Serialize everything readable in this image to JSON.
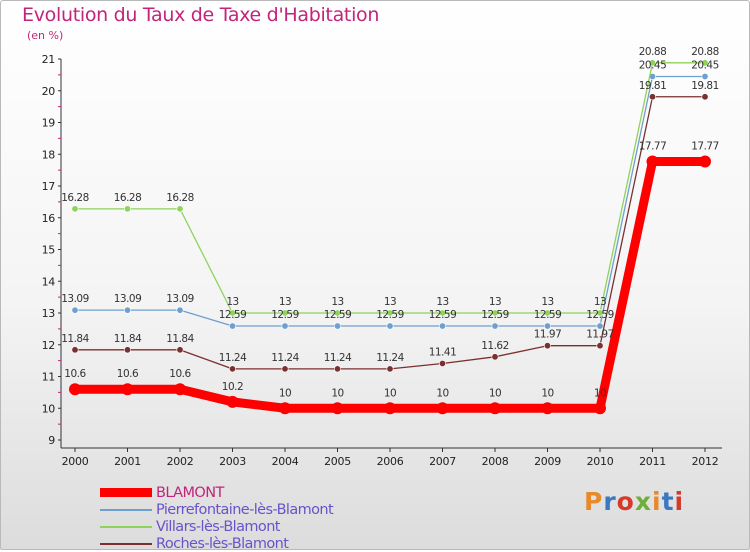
{
  "title": "Evolution du Taux de Taxe d'Habitation",
  "subtitle": "(en %)",
  "logo": {
    "text": "Proxiti",
    "colors": [
      "#e8892a",
      "#3b78c2",
      "#d33a2a",
      "#6fae3a",
      "#e8892a",
      "#3b78c2",
      "#d33a2a"
    ]
  },
  "chart_data": {
    "type": "line",
    "title": "Evolution du Taux de Taxe d'Habitation",
    "ylabel": "(en %)",
    "xlabel": "",
    "x": [
      "2000",
      "2001",
      "2002",
      "2003",
      "2004",
      "2005",
      "2006",
      "2007",
      "2008",
      "2009",
      "2010",
      "2011",
      "2012"
    ],
    "ylim": [
      9,
      21
    ],
    "yticks": [
      9,
      10,
      11,
      12,
      13,
      14,
      15,
      16,
      17,
      18,
      19,
      20,
      21
    ],
    "grid": false,
    "legend_position": "bottom-left",
    "series": [
      {
        "name": "BLAMONT",
        "color": "#ff0000",
        "emphasis": true,
        "values": [
          10.6,
          10.6,
          10.6,
          10.2,
          10,
          10,
          10,
          10,
          10,
          10,
          10,
          17.77,
          17.77
        ],
        "labels": [
          "10.6",
          "10.6",
          "10.6",
          "10.2",
          "10",
          "10",
          "10",
          "10",
          "10",
          "10",
          "10",
          "17.77",
          "17.77"
        ]
      },
      {
        "name": "Pierrefontaine-lès-Blamont",
        "color": "#6f9fcf",
        "values": [
          13.09,
          13.09,
          13.09,
          12.59,
          12.59,
          12.59,
          12.59,
          12.59,
          12.59,
          12.59,
          12.59,
          20.45,
          20.45
        ],
        "labels": [
          "13.09",
          "13.09",
          "13.09",
          "12.59",
          "12.59",
          "12.59",
          "12.59",
          "12.59",
          "12.59",
          "12.59",
          "12.59",
          "20.45",
          "20.45"
        ]
      },
      {
        "name": "Villars-lès-Blamont",
        "color": "#8ed35a",
        "values": [
          16.28,
          16.28,
          16.28,
          13,
          13,
          13,
          13,
          13,
          13,
          13,
          13,
          20.88,
          20.88
        ],
        "labels": [
          "16.28",
          "16.28",
          "16.28",
          "13",
          "13",
          "13",
          "13",
          "13",
          "13",
          "13",
          "13",
          "20.88",
          "20.88"
        ]
      },
      {
        "name": "Roches-lès-Blamont",
        "color": "#7a3030",
        "values": [
          11.84,
          11.84,
          11.84,
          11.24,
          11.24,
          11.24,
          11.24,
          11.41,
          11.62,
          11.97,
          11.97,
          19.81,
          19.81
        ],
        "labels": [
          "11.84",
          "11.84",
          "11.84",
          "11.24",
          "11.24",
          "11.24",
          "11.24",
          "11.41",
          "11.62",
          "11.97",
          "11.97",
          "19.81",
          "19.81"
        ]
      }
    ]
  }
}
